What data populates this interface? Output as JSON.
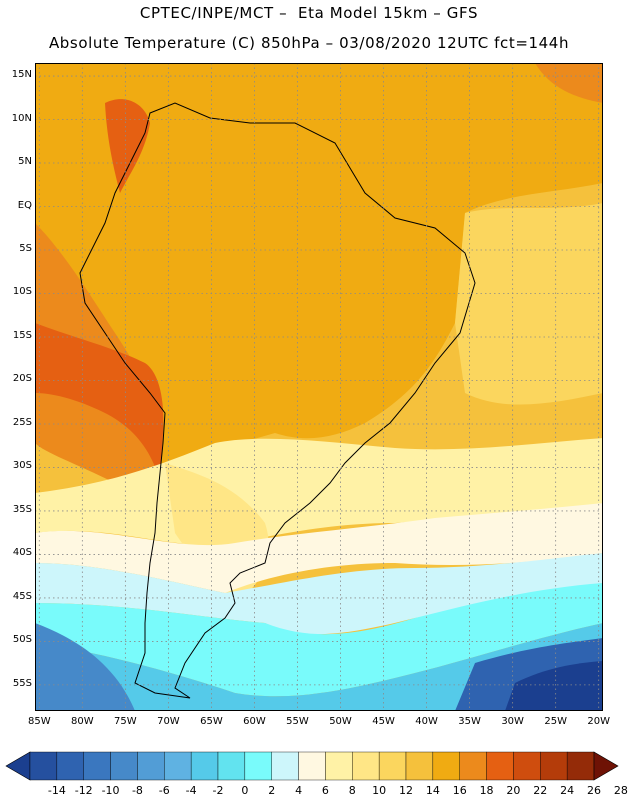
{
  "header": {
    "line1": "CPTEC/INPE/MCT –  Eta Model 15km – GFS",
    "line2": "Absolute Temperature (C) 850hPa – 03/08/2020 12UTC fct=144h"
  },
  "map": {
    "latitudes": [
      "15N",
      "10N",
      "5N",
      "EQ",
      "5S",
      "10S",
      "15S",
      "20S",
      "25S",
      "30S",
      "35S",
      "40S",
      "45S",
      "50S",
      "55S"
    ],
    "longitudes": [
      "85W",
      "80W",
      "75W",
      "70W",
      "65W",
      "60W",
      "55W",
      "50W",
      "45W",
      "40W",
      "35W",
      "30W",
      "25W",
      "20W"
    ],
    "lat_range": [
      16.5,
      -58
    ],
    "lon_range": [
      -85.5,
      -19.5
    ],
    "grid": "dotted"
  },
  "colorbar": {
    "levels": [
      "-14",
      "-12",
      "-10",
      "-8",
      "-6",
      "-4",
      "-2",
      "0",
      "2",
      "4",
      "6",
      "8",
      "10",
      "12",
      "14",
      "16",
      "18",
      "20",
      "22",
      "24",
      "26",
      "28"
    ],
    "colors": [
      "#1b3f8f",
      "#25509f",
      "#2f63b0",
      "#3a77bf",
      "#4689c9",
      "#529dd6",
      "#5fb2e2",
      "#55cae9",
      "#62e3ef",
      "#79fbfb",
      "#cdf6fb",
      "#fff8e1",
      "#fff2a6",
      "#ffe686",
      "#fbd65e",
      "#f5c13c",
      "#f0ab12",
      "#ec8a1c",
      "#e56012",
      "#cf4d0e",
      "#b43c0a",
      "#942b08",
      "#6e1205"
    ]
  }
}
